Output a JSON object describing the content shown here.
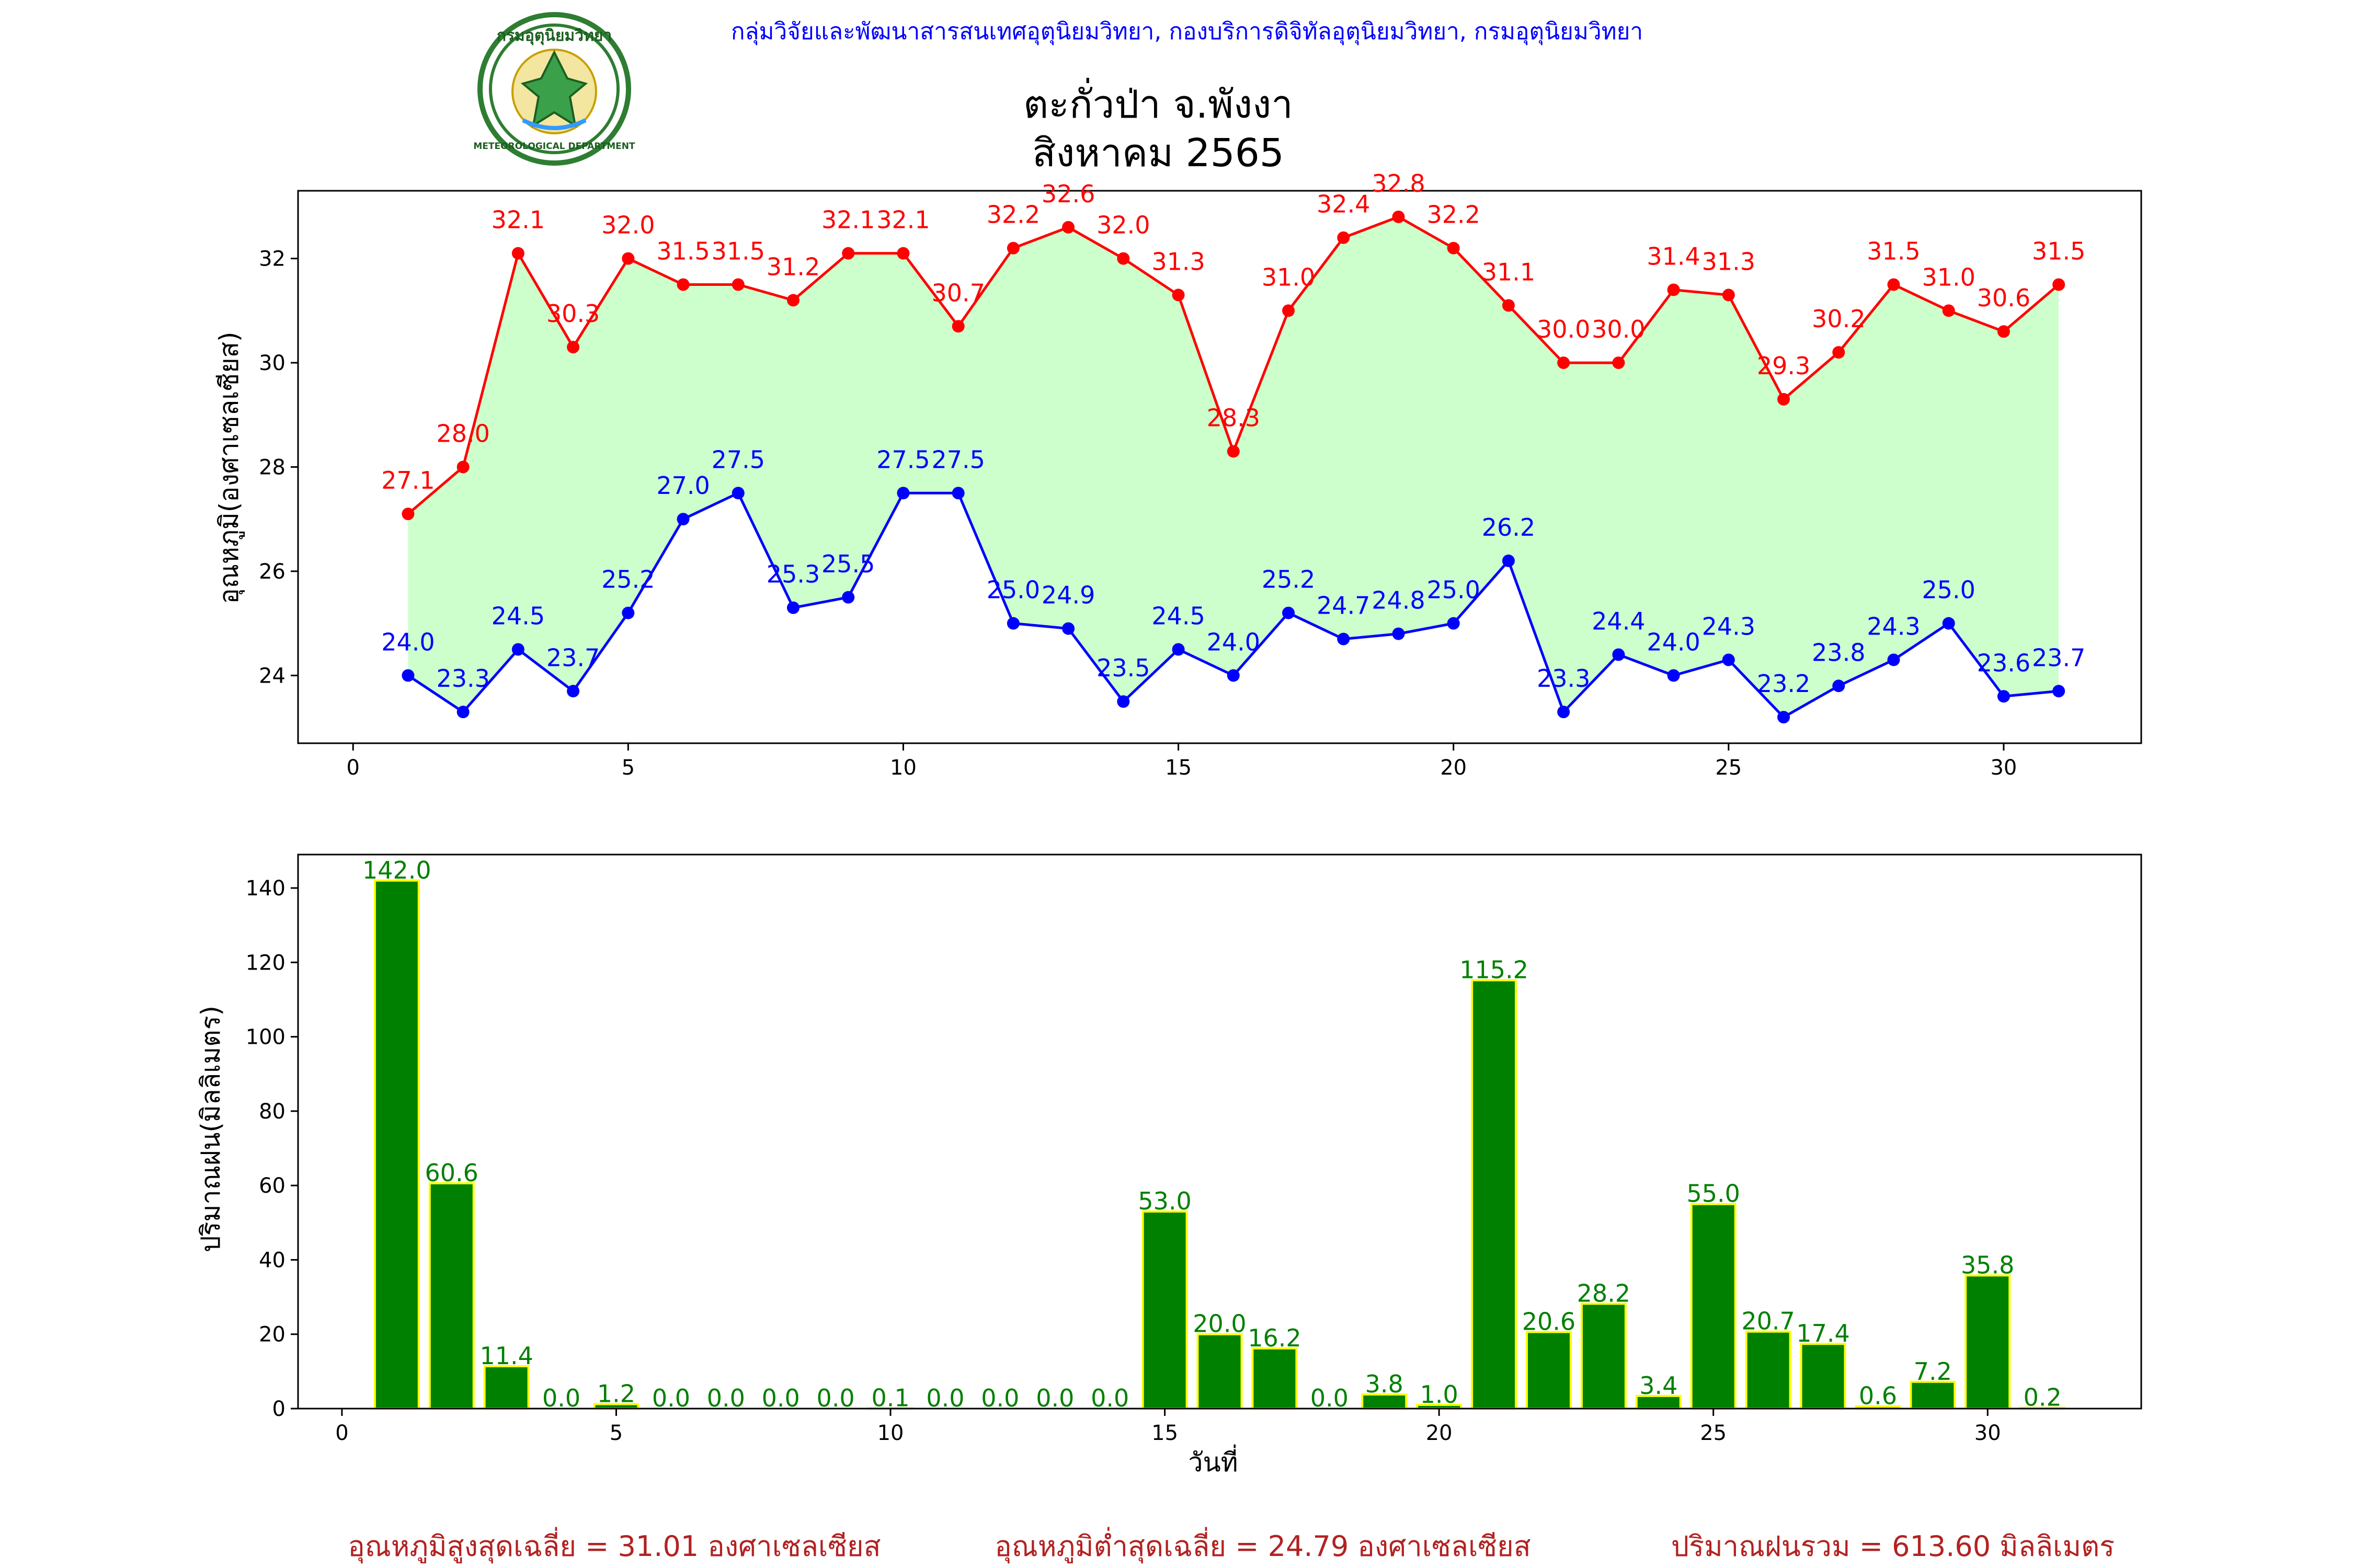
{
  "header": {
    "org_line": "กลุ่มวิจัยและพัฒนาสารสนเทศอุตุนิยมวิทยา, กองบริการดิจิทัลอุตุนิยมวิทยา, กรมอุตุนิยมวิทยา",
    "title_line1": "ตะกั่วป่า จ.พังงา",
    "title_line2": "สิงหาคม 2565",
    "logo_top_text": "กรมอุตุนิยมวิทยา",
    "logo_bottom_text": "METEOROLOGICAL DEPARTMENT"
  },
  "colors": {
    "max_line": "#ff0000",
    "min_line": "#0000ff",
    "fill": "#ccffcc",
    "bar_fill": "#008000",
    "bar_edge": "#ffff00",
    "bar_label": "#008000",
    "summary_text": "#b22222",
    "header_text": "#0000ff"
  },
  "chart_data": [
    {
      "type": "line",
      "ylabel": "อุณหภูมิ(องศาเซลเซียส)",
      "x": [
        1,
        2,
        3,
        4,
        5,
        6,
        7,
        8,
        9,
        10,
        11,
        12,
        13,
        14,
        15,
        16,
        17,
        18,
        19,
        20,
        21,
        22,
        23,
        24,
        25,
        26,
        27,
        28,
        29,
        30,
        31
      ],
      "xlim": [
        -1,
        32.5
      ],
      "ylim": [
        22.7,
        33.3
      ],
      "xticks": [
        0,
        5,
        10,
        15,
        20,
        25,
        30
      ],
      "yticks": [
        24,
        26,
        28,
        30,
        32
      ],
      "series": [
        {
          "key": "max",
          "values": [
            27.1,
            28.0,
            32.1,
            30.3,
            32.0,
            31.5,
            31.5,
            31.2,
            32.1,
            32.1,
            30.7,
            32.2,
            32.6,
            32.0,
            31.3,
            28.3,
            31.0,
            32.4,
            32.8,
            32.2,
            31.1,
            30.0,
            30.0,
            31.4,
            31.3,
            29.3,
            30.2,
            31.5,
            31.0,
            30.6,
            31.5
          ]
        },
        {
          "key": "min",
          "values": [
            24.0,
            23.3,
            24.5,
            23.7,
            25.2,
            27.0,
            27.5,
            25.3,
            25.5,
            27.5,
            27.5,
            25.0,
            24.9,
            23.5,
            24.5,
            24.0,
            25.2,
            24.7,
            24.8,
            25.0,
            26.2,
            23.3,
            24.4,
            24.0,
            24.3,
            23.2,
            23.8,
            24.3,
            25.0,
            23.6,
            23.7
          ]
        }
      ]
    },
    {
      "type": "bar",
      "ylabel": "ปริมาณฝน(มิลลิเมตร)",
      "xlabel": "วันที่",
      "x": [
        1,
        2,
        3,
        4,
        5,
        6,
        7,
        8,
        9,
        10,
        11,
        12,
        13,
        14,
        15,
        16,
        17,
        18,
        19,
        20,
        21,
        22,
        23,
        24,
        25,
        26,
        27,
        28,
        29,
        30,
        31
      ],
      "values": [
        142.0,
        60.6,
        11.4,
        0.0,
        1.2,
        0.0,
        0.0,
        0.0,
        0.0,
        0.1,
        0.0,
        0.0,
        0.0,
        0.0,
        53.0,
        20.0,
        16.2,
        0.0,
        3.8,
        1.0,
        115.2,
        20.6,
        28.2,
        3.4,
        55.0,
        20.7,
        17.4,
        0.6,
        7.2,
        35.8,
        0.2
      ],
      "xlim": [
        -0.8,
        32.8
      ],
      "ylim": [
        0,
        149
      ],
      "xticks": [
        0,
        5,
        10,
        15,
        20,
        25,
        30
      ],
      "yticks": [
        0,
        20,
        40,
        60,
        80,
        100,
        120,
        140
      ]
    }
  ],
  "summary": {
    "avg_max": "อุณหภูมิสูงสุดเฉลี่ย = 31.01 องศาเซลเซียส",
    "avg_min": "อุณหภูมิต่ำสุดเฉลี่ย = 24.79 องศาเซลเซียส",
    "total_rain": "ปริมาณฝนรวม = 613.60 มิลลิเมตร"
  }
}
